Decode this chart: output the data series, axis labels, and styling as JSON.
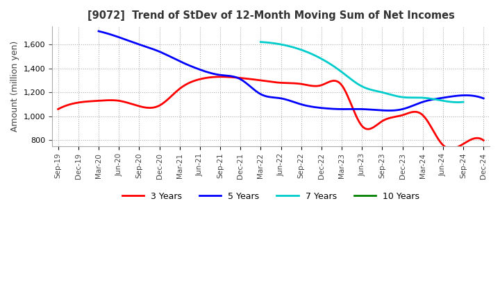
{
  "title": "[9072]  Trend of StDev of 12-Month Moving Sum of Net Incomes",
  "ylabel": "Amount (million yen)",
  "ylim": [
    750,
    1750
  ],
  "yticks": [
    800,
    1000,
    1200,
    1400,
    1600
  ],
  "legend_labels": [
    "3 Years",
    "5 Years",
    "7 Years",
    "10 Years"
  ],
  "legend_colors": [
    "#ff0000",
    "#0000ff",
    "#00cccc",
    "#008000"
  ],
  "x_labels": [
    "Sep-19",
    "Dec-19",
    "Mar-20",
    "Jun-20",
    "Sep-20",
    "Dec-20",
    "Mar-21",
    "Jun-21",
    "Sep-21",
    "Dec-21",
    "Mar-22",
    "Jun-22",
    "Sep-22",
    "Dec-22",
    "Mar-23",
    "Jun-23",
    "Sep-23",
    "Dec-23",
    "Mar-24",
    "Jun-24",
    "Sep-24",
    "Dec-24"
  ],
  "series_3y": [
    1060,
    1115,
    1130,
    1130,
    1085,
    1090,
    1230,
    1310,
    1330,
    1320,
    1300,
    1280,
    1270,
    1260,
    1260,
    920,
    960,
    1010,
    1010,
    760,
    770,
    800
  ],
  "series_5y": [
    null,
    null,
    1710,
    1660,
    1600,
    1540,
    1460,
    1390,
    1345,
    1310,
    1185,
    1150,
    1100,
    1070,
    1060,
    1060,
    1050,
    1060,
    1120,
    1155,
    1175,
    1150
  ],
  "series_7y": [
    null,
    null,
    null,
    null,
    null,
    null,
    null,
    null,
    null,
    null,
    1620,
    1600,
    1555,
    1480,
    1370,
    1250,
    1200,
    1160,
    1155,
    1130,
    1120,
    null
  ],
  "series_10y": [
    null,
    null,
    null,
    null,
    null,
    null,
    null,
    null,
    null,
    null,
    null,
    null,
    null,
    null,
    null,
    null,
    null,
    null,
    null,
    null,
    null,
    null
  ]
}
